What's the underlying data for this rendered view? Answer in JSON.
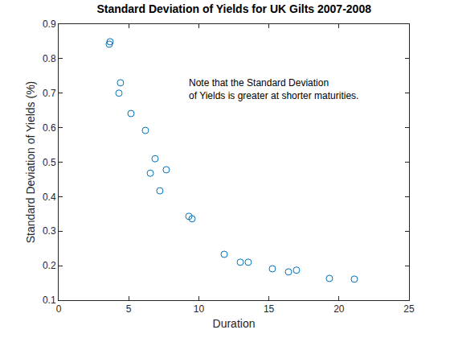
{
  "chart_data": {
    "type": "scatter",
    "title": "Standard Deviation of Yields for UK Gilts 2007-2008",
    "x_label": "Duration",
    "y_label": "Standard Deviation of Yields (%)",
    "annotation": "Note that the Standard Deviation\nof Yields is greater at shorter maturities.",
    "x": [
      3.61,
      3.67,
      4.3,
      4.41,
      5.16,
      6.19,
      6.54,
      6.88,
      7.22,
      7.68,
      9.29,
      9.52,
      11.81,
      12.96,
      13.53,
      15.25,
      16.4,
      16.97,
      19.32,
      21.1
    ],
    "values": [
      0.842,
      0.849,
      0.7,
      0.73,
      0.641,
      0.592,
      0.468,
      0.51,
      0.417,
      0.478,
      0.343,
      0.336,
      0.233,
      0.21,
      0.21,
      0.191,
      0.182,
      0.187,
      0.163,
      0.161
    ],
    "color": "#0072bd",
    "marker": "open circle",
    "xlim": [
      0,
      25
    ],
    "xticks": [
      0,
      5,
      10,
      15,
      20,
      25
    ],
    "ylim": [
      0.1,
      0.9
    ],
    "yticks": [
      0.1,
      0.2,
      0.3,
      0.4,
      0.5,
      0.6,
      0.7,
      0.8,
      0.9
    ],
    "grid": false
  }
}
